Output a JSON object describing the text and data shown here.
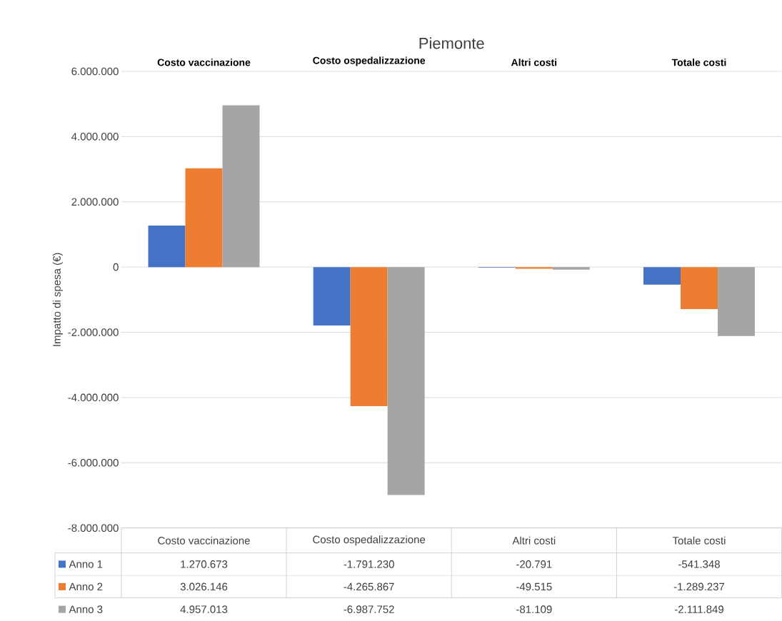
{
  "chart_data": {
    "type": "bar",
    "title": "Piemonte",
    "ylabel": "Impatto di spesa (€)",
    "categories": [
      "Costo vaccinazione",
      "Costo ospedalizzazione",
      "Altri costi",
      "Totale costi"
    ],
    "series": [
      {
        "name": "Anno 1",
        "color": "#4472c4",
        "values": [
          1270673,
          -1791230,
          -20791,
          -541348
        ],
        "value_labels": [
          "1.270.673",
          "-1.791.230",
          "-20.791",
          "-541.348"
        ]
      },
      {
        "name": "Anno 2",
        "color": "#ed7d31",
        "values": [
          3026146,
          -4265867,
          -49515,
          -1289237
        ],
        "value_labels": [
          "3.026.146",
          "-4.265.867",
          "-49.515",
          "-1.289.237"
        ]
      },
      {
        "name": "Anno 3",
        "color": "#a5a5a5",
        "values": [
          4957013,
          -6987752,
          -81109,
          -2111849
        ],
        "value_labels": [
          "4.957.013",
          "-6.987.752",
          "-81.109",
          "-2.111.849"
        ]
      }
    ],
    "ylim": [
      -8000000,
      6000000
    ],
    "yticks": [
      {
        "value": -8000000,
        "label": "-8.000.000"
      },
      {
        "value": -6000000,
        "label": "-6.000.000"
      },
      {
        "value": -4000000,
        "label": "-4.000.000"
      },
      {
        "value": -2000000,
        "label": "-2.000.000"
      },
      {
        "value": 0,
        "label": "0"
      },
      {
        "value": 2000000,
        "label": "2.000.000"
      },
      {
        "value": 4000000,
        "label": "4.000.000"
      },
      {
        "value": 6000000,
        "label": "6.000.000"
      }
    ],
    "grid": "y",
    "legend": "bottom"
  }
}
